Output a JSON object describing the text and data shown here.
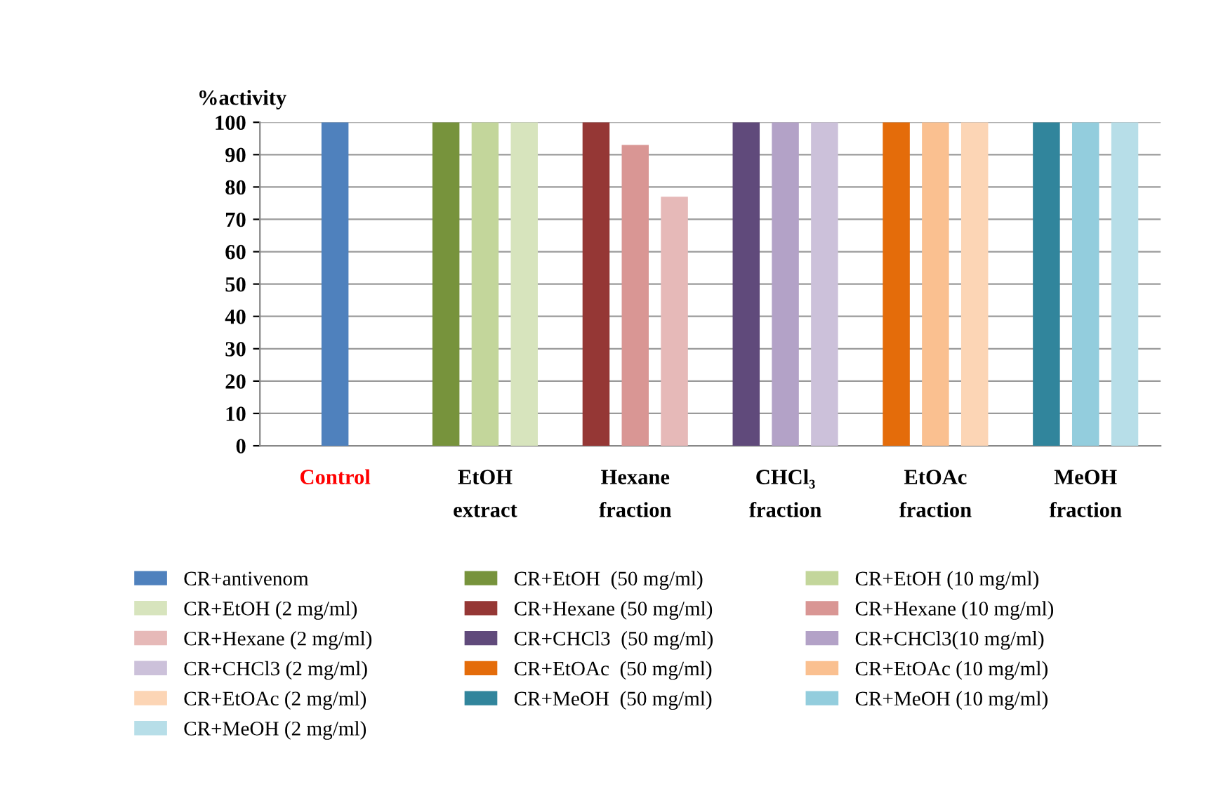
{
  "chart_data": {
    "type": "bar",
    "ylabel": "%activity",
    "categories": [
      "Control",
      "EtOH\nextract",
      "Hexane\nfraction",
      "CHCl₃\nfraction",
      "EtOAc\nfraction",
      "MeOH\nfraction"
    ],
    "series": [
      {
        "name": "CR+antivenom",
        "color": "#4f81bd",
        "values": [
          100,
          null,
          null,
          null,
          null,
          null
        ]
      },
      {
        "name": "CR+EtOH  (50 mg/ml)",
        "color": "#77933c",
        "values": [
          null,
          100,
          null,
          null,
          null,
          null
        ]
      },
      {
        "name": "CR+EtOH (10 mg/ml)",
        "color": "#c3d69b",
        "values": [
          null,
          100,
          null,
          null,
          null,
          null
        ]
      },
      {
        "name": "CR+EtOH (2 mg/ml)",
        "color": "#d7e4bd",
        "values": [
          null,
          100,
          null,
          null,
          null,
          null
        ]
      },
      {
        "name": "CR+Hexane (50 mg/ml)",
        "color": "#953735",
        "values": [
          null,
          null,
          100,
          null,
          null,
          null
        ]
      },
      {
        "name": "CR+Hexane (10 mg/ml)",
        "color": "#d99694",
        "values": [
          null,
          null,
          93,
          null,
          null,
          null
        ]
      },
      {
        "name": "CR+Hexane (2 mg/ml)",
        "color": "#e6b9b8",
        "values": [
          null,
          null,
          77,
          null,
          null,
          null
        ]
      },
      {
        "name": "CR+CHCl3  (50 mg/ml)",
        "color": "#604a7b",
        "values": [
          null,
          null,
          null,
          100,
          null,
          null
        ]
      },
      {
        "name": "CR+CHCl3(10 mg/ml)",
        "color": "#b3a2c7",
        "values": [
          null,
          null,
          null,
          100,
          null,
          null
        ]
      },
      {
        "name": "CR+CHCl3 (2 mg/ml)",
        "color": "#ccc1da",
        "values": [
          null,
          null,
          null,
          100,
          null,
          null
        ]
      },
      {
        "name": "CR+EtOAc  (50 mg/ml)",
        "color": "#e46c0a",
        "values": [
          null,
          null,
          null,
          null,
          100,
          null
        ]
      },
      {
        "name": "CR+EtOAc (10 mg/ml)",
        "color": "#fac090",
        "values": [
          null,
          null,
          null,
          null,
          100,
          null
        ]
      },
      {
        "name": "CR+EtOAc (2 mg/ml)",
        "color": "#fcd5b5",
        "values": [
          null,
          null,
          null,
          null,
          100,
          null
        ]
      },
      {
        "name": "CR+MeOH  (50 mg/ml)",
        "color": "#31859c",
        "values": [
          null,
          null,
          null,
          null,
          null,
          100
        ]
      },
      {
        "name": "CR+MeOH (10 mg/ml)",
        "color": "#93cddd",
        "values": [
          null,
          null,
          null,
          null,
          null,
          100
        ]
      },
      {
        "name": "CR+MeOH (2 mg/ml)",
        "color": "#b7dee8",
        "values": [
          null,
          null,
          null,
          null,
          null,
          100
        ]
      }
    ],
    "ylim": [
      0,
      100
    ],
    "yticks": [
      0,
      10,
      20,
      30,
      40,
      50,
      60,
      70,
      80,
      90,
      100
    ],
    "grid": "y",
    "legend": "bottom"
  }
}
